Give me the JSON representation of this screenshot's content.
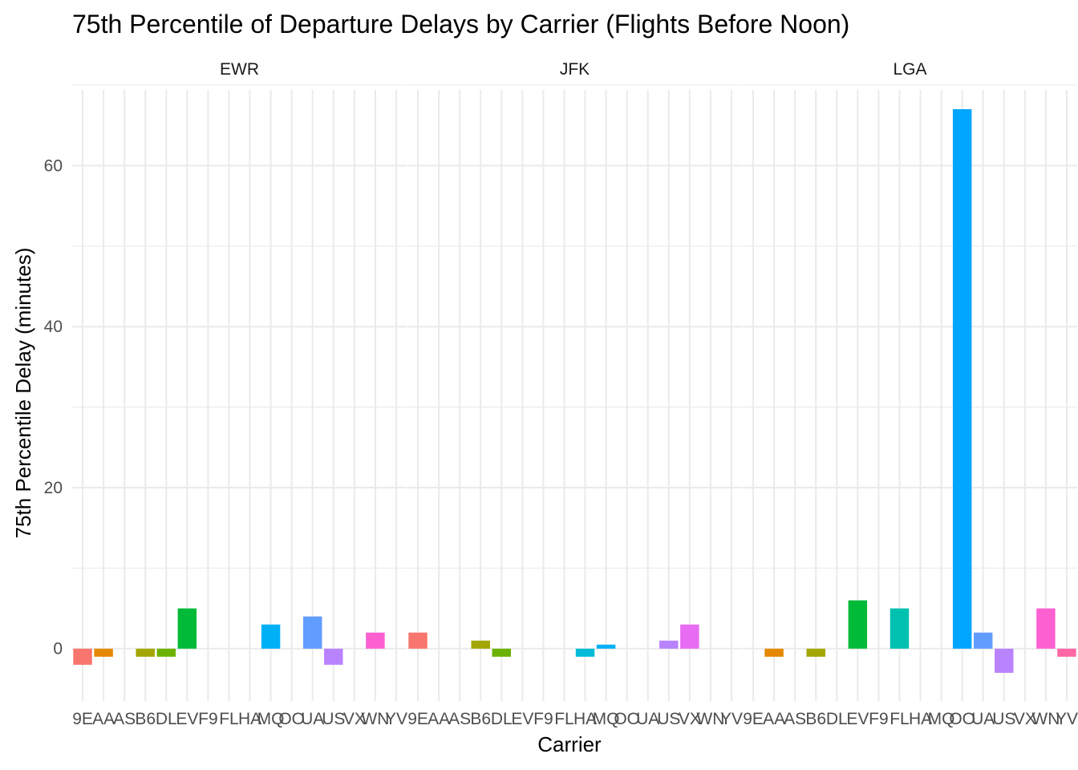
{
  "chart_data": {
    "type": "bar",
    "title": "75th Percentile of Departure Delays by Carrier (Flights Before Noon)",
    "xlabel": "Carrier",
    "ylabel": "75th Percentile Delay (minutes)",
    "categories": [
      "9E",
      "AA",
      "AS",
      "B6",
      "DL",
      "EV",
      "F9",
      "FL",
      "HA",
      "MQ",
      "OO",
      "UA",
      "US",
      "VX",
      "WN",
      "YV"
    ],
    "y_ticks": [
      0,
      20,
      40,
      60
    ],
    "ylim": [
      -6.5,
      70.3
    ],
    "grid": true,
    "legend": "none",
    "colors": {
      "9E": "#F8766D",
      "AA": "#E58700",
      "AS": "#C99800",
      "B6": "#A3A500",
      "DL": "#6BB100",
      "EV": "#00BA38",
      "F9": "#00BF7D",
      "FL": "#00C0AF",
      "HA": "#00BCD8",
      "MQ": "#00B0F6",
      "OO": "#00A5FF",
      "UA": "#619CFF",
      "US": "#B983FF",
      "VX": "#E76BF3",
      "WN": "#FD61D1",
      "YV": "#FF67A4"
    },
    "facets": [
      {
        "label": "EWR",
        "bars": [
          {
            "carrier": "9E",
            "value": -2
          },
          {
            "carrier": "AA",
            "value": -1
          },
          {
            "carrier": "B6",
            "value": -1
          },
          {
            "carrier": "DL",
            "value": -1
          },
          {
            "carrier": "EV",
            "value": 5
          },
          {
            "carrier": "MQ",
            "value": 3
          },
          {
            "carrier": "UA",
            "value": 4
          },
          {
            "carrier": "US",
            "value": -2
          },
          {
            "carrier": "WN",
            "value": 2
          }
        ]
      },
      {
        "label": "JFK",
        "bars": [
          {
            "carrier": "9E",
            "value": 2
          },
          {
            "carrier": "B6",
            "value": 1
          },
          {
            "carrier": "DL",
            "value": -1
          },
          {
            "carrier": "HA",
            "value": -1
          },
          {
            "carrier": "MQ",
            "value": 0.5
          },
          {
            "carrier": "US",
            "value": 1
          },
          {
            "carrier": "VX",
            "value": 3
          }
        ]
      },
      {
        "label": "LGA",
        "bars": [
          {
            "carrier": "AA",
            "value": -1
          },
          {
            "carrier": "B6",
            "value": -1
          },
          {
            "carrier": "EV",
            "value": 6
          },
          {
            "carrier": "FL",
            "value": 5
          },
          {
            "carrier": "OO",
            "value": 67
          },
          {
            "carrier": "UA",
            "value": 2
          },
          {
            "carrier": "US",
            "value": -3
          },
          {
            "carrier": "WN",
            "value": 5
          },
          {
            "carrier": "YV",
            "value": -1
          }
        ]
      }
    ]
  }
}
